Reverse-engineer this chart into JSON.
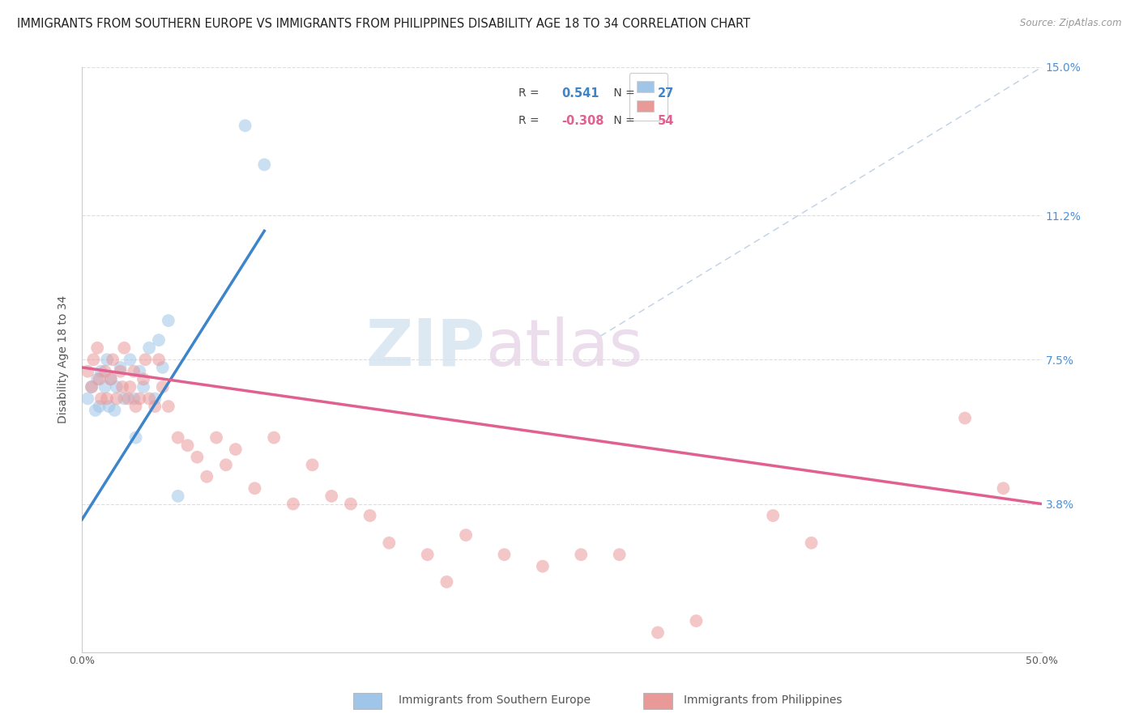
{
  "title": "IMMIGRANTS FROM SOUTHERN EUROPE VS IMMIGRANTS FROM PHILIPPINES DISABILITY AGE 18 TO 34 CORRELATION CHART",
  "source": "Source: ZipAtlas.com",
  "ylabel": "Disability Age 18 to 34",
  "xlim": [
    0,
    0.5
  ],
  "ylim": [
    0,
    0.15
  ],
  "xtick_positions": [
    0.0,
    0.1,
    0.2,
    0.3,
    0.4,
    0.5
  ],
  "xticklabels": [
    "0.0%",
    "",
    "",
    "",
    "",
    "50.0%"
  ],
  "ytick_positions": [
    0.038,
    0.075,
    0.112,
    0.15
  ],
  "ytick_labels": [
    "3.8%",
    "7.5%",
    "11.2%",
    "15.0%"
  ],
  "series1_label": "Immigrants from Southern Europe",
  "series1_color": "#9fc5e8",
  "series1_line_color": "#3d85c8",
  "series1_R": "0.541",
  "series1_N": "27",
  "series2_label": "Immigrants from Philippines",
  "series2_color": "#ea9999",
  "series2_line_color": "#e06090",
  "series2_R": "-0.308",
  "series2_N": "54",
  "watermark_zip": "ZIP",
  "watermark_atlas": "atlas",
  "blue_scatter_x": [
    0.003,
    0.005,
    0.007,
    0.008,
    0.009,
    0.01,
    0.012,
    0.013,
    0.014,
    0.015,
    0.017,
    0.018,
    0.02,
    0.022,
    0.025,
    0.027,
    0.028,
    0.03,
    0.032,
    0.035,
    0.038,
    0.04,
    0.042,
    0.045,
    0.05,
    0.085,
    0.095
  ],
  "blue_scatter_y": [
    0.065,
    0.068,
    0.062,
    0.07,
    0.063,
    0.072,
    0.068,
    0.075,
    0.063,
    0.07,
    0.062,
    0.068,
    0.073,
    0.065,
    0.075,
    0.065,
    0.055,
    0.072,
    0.068,
    0.078,
    0.065,
    0.08,
    0.073,
    0.085,
    0.04,
    0.135,
    0.125
  ],
  "pink_scatter_x": [
    0.003,
    0.005,
    0.006,
    0.008,
    0.009,
    0.01,
    0.012,
    0.013,
    0.015,
    0.016,
    0.018,
    0.02,
    0.021,
    0.022,
    0.024,
    0.025,
    0.027,
    0.028,
    0.03,
    0.032,
    0.033,
    0.035,
    0.038,
    0.04,
    0.042,
    0.045,
    0.05,
    0.055,
    0.06,
    0.065,
    0.07,
    0.075,
    0.08,
    0.09,
    0.1,
    0.11,
    0.12,
    0.13,
    0.14,
    0.15,
    0.16,
    0.18,
    0.19,
    0.2,
    0.22,
    0.24,
    0.26,
    0.28,
    0.3,
    0.32,
    0.36,
    0.38,
    0.46,
    0.48
  ],
  "pink_scatter_y": [
    0.072,
    0.068,
    0.075,
    0.078,
    0.07,
    0.065,
    0.072,
    0.065,
    0.07,
    0.075,
    0.065,
    0.072,
    0.068,
    0.078,
    0.065,
    0.068,
    0.072,
    0.063,
    0.065,
    0.07,
    0.075,
    0.065,
    0.063,
    0.075,
    0.068,
    0.063,
    0.055,
    0.053,
    0.05,
    0.045,
    0.055,
    0.048,
    0.052,
    0.042,
    0.055,
    0.038,
    0.048,
    0.04,
    0.038,
    0.035,
    0.028,
    0.025,
    0.018,
    0.03,
    0.025,
    0.022,
    0.025,
    0.025,
    0.005,
    0.008,
    0.035,
    0.028,
    0.06,
    0.042
  ],
  "blue_line_x": [
    0.0,
    0.095
  ],
  "blue_line_y": [
    0.034,
    0.108
  ],
  "pink_line_x": [
    0.0,
    0.5
  ],
  "pink_line_y": [
    0.073,
    0.038
  ],
  "diag_line_x": [
    0.27,
    0.5
  ],
  "diag_line_y": [
    0.081,
    0.15
  ],
  "title_fontsize": 10.5,
  "tick_fontsize": 9,
  "scatter_size": 130,
  "scatter_alpha": 0.55,
  "line_width": 2.5
}
